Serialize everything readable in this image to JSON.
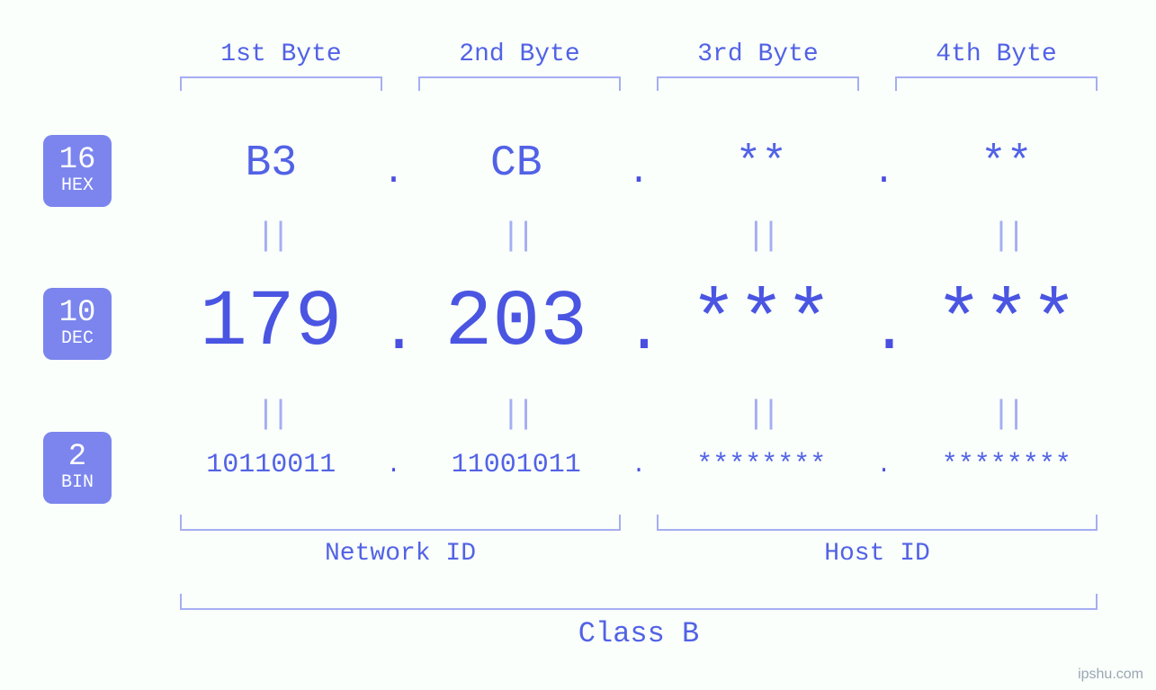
{
  "colors": {
    "background": "#fafffb",
    "primary_text": "#5262e6",
    "strong_text": "#4a55e2",
    "bracket": "#a5aef2",
    "badge_bg": "#7b85ed",
    "badge_text": "#ffffff",
    "watermark": "#9aa6b2"
  },
  "typography": {
    "font_family": "Courier New, monospace",
    "header_fontsize": 28,
    "hex_fontsize": 48,
    "dec_fontsize": 88,
    "bin_fontsize": 30,
    "eq_fontsize": 36,
    "label_fontsize": 28,
    "class_fontsize": 32,
    "badge_num_fontsize": 34,
    "badge_lab_fontsize": 20
  },
  "byte_headers": [
    "1st Byte",
    "2nd Byte",
    "3rd Byte",
    "4th Byte"
  ],
  "badges": {
    "hex": {
      "num": "16",
      "label": "HEX"
    },
    "dec": {
      "num": "10",
      "label": "DEC"
    },
    "bin": {
      "num": "2",
      "label": "BIN"
    }
  },
  "hex": [
    "B3",
    "CB",
    "**",
    "**"
  ],
  "dec": [
    "179",
    "203",
    "***",
    "***"
  ],
  "bin": [
    "10110011",
    "11001011",
    "********",
    "********"
  ],
  "eq_symbol": "||",
  "dot": ".",
  "section_labels": {
    "network": "Network ID",
    "host": "Host ID",
    "class": "Class B"
  },
  "watermark": "ipshu.com"
}
